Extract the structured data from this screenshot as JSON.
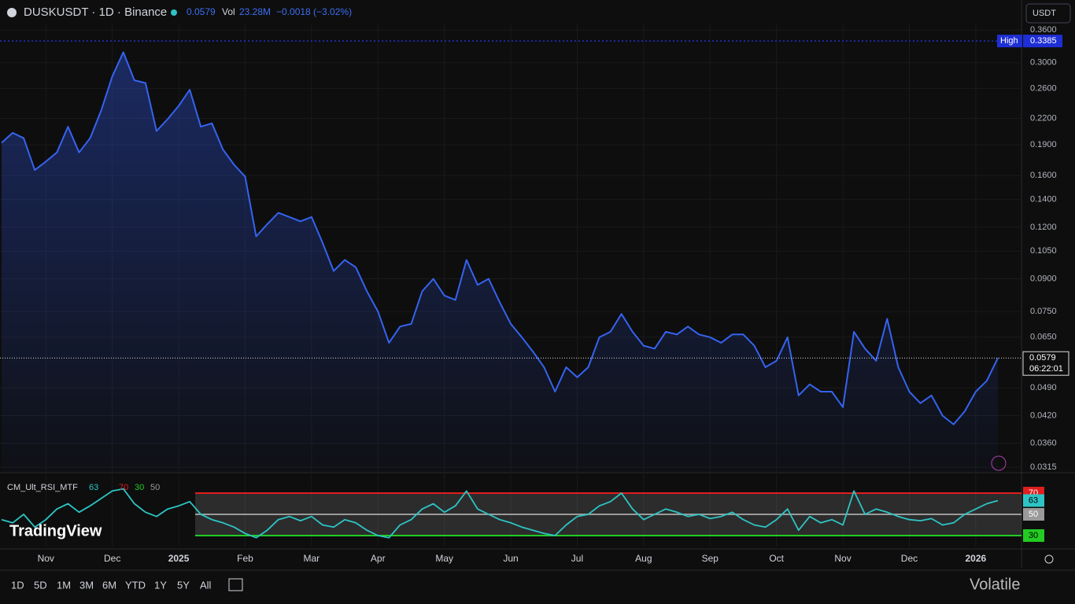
{
  "header": {
    "vol_label": "Vol",
    "volume": "23.28M",
    "change": "−0.0018 (−3.02%)",
    "currency": "USDT"
  },
  "logo": "TradingView",
  "watermark": "Volatile",
  "ranges": [
    "1D",
    "5D",
    "1M",
    "3M",
    "6M",
    "YTD",
    "1Y",
    "5Y",
    "All"
  ],
  "chart_data": [
    {
      "type": "line",
      "log_scale": true,
      "grid": true,
      "categories": [
        null,
        null,
        null,
        null,
        "Nov",
        null,
        null,
        null,
        null,
        null,
        "Dec",
        null,
        null,
        null,
        null,
        null,
        "2025",
        null,
        null,
        null,
        null,
        null,
        "Feb",
        null,
        null,
        null,
        null,
        null,
        "Mar",
        null,
        null,
        null,
        null,
        null,
        "Apr",
        null,
        null,
        null,
        null,
        null,
        "May",
        null,
        null,
        null,
        null,
        null,
        "Jun",
        null,
        null,
        null,
        null,
        null,
        "Jul",
        null,
        null,
        null,
        null,
        null,
        "Aug",
        null,
        null,
        null,
        null,
        null,
        "Sep",
        null,
        null,
        null,
        null,
        null,
        "Oct",
        null,
        null,
        null,
        null,
        null,
        "Nov",
        null,
        null,
        null,
        null,
        null,
        "Dec",
        null,
        null,
        null,
        null,
        null,
        "2026",
        null,
        null
      ],
      "series": [
        {
          "name": "DUSKUSDT · 1D · Binance",
          "color": "#3563f0",
          "values": [
            0.192,
            0.203,
            0.197,
            0.165,
            0.173,
            0.182,
            0.21,
            0.182,
            0.197,
            0.23,
            0.278,
            0.318,
            0.272,
            0.268,
            0.205,
            0.219,
            0.236,
            0.258,
            0.21,
            0.214,
            0.185,
            0.17,
            0.159,
            0.114,
            0.122,
            0.13,
            0.127,
            0.124,
            0.127,
            0.11,
            0.094,
            0.1,
            0.096,
            0.084,
            0.075,
            0.063,
            0.069,
            0.07,
            0.084,
            0.09,
            0.082,
            0.08,
            0.1,
            0.087,
            0.09,
            0.079,
            0.07,
            0.065,
            0.06,
            0.055,
            0.048,
            0.055,
            0.052,
            0.055,
            0.065,
            0.067,
            0.074,
            0.067,
            0.062,
            0.061,
            0.067,
            0.066,
            0.069,
            0.066,
            0.065,
            0.063,
            0.066,
            0.066,
            0.062,
            0.055,
            0.057,
            0.065,
            0.047,
            0.05,
            0.048,
            0.048,
            0.044,
            0.067,
            0.061,
            0.057,
            0.072,
            0.055,
            0.048,
            0.045,
            0.047,
            0.042,
            0.04,
            0.043,
            0.048,
            0.051,
            0.0579
          ]
        }
      ],
      "ylim": [
        0.0307,
        0.373
      ],
      "yticks": [
        {
          "value": 0.36,
          "label": "0.3600"
        },
        {
          "value": 0.3,
          "label": "0.3000"
        },
        {
          "value": 0.26,
          "label": "0.2600"
        },
        {
          "value": 0.22,
          "label": "0.2200"
        },
        {
          "value": 0.19,
          "label": "0.1900"
        },
        {
          "value": 0.16,
          "label": "0.1600"
        },
        {
          "value": 0.14,
          "label": "0.1400"
        },
        {
          "value": 0.12,
          "label": "0.1200"
        },
        {
          "value": 0.105,
          "label": "0.1050"
        },
        {
          "value": 0.09,
          "label": "0.0900"
        },
        {
          "value": 0.075,
          "label": "0.0750"
        },
        {
          "value": 0.065,
          "label": "0.0650"
        },
        {
          "value": 0.049,
          "label": "0.0490"
        },
        {
          "value": 0.042,
          "label": "0.0420"
        },
        {
          "value": 0.036,
          "label": "0.0360"
        },
        {
          "value": 0.0315,
          "label": "0.0315"
        }
      ],
      "annotations": [
        {
          "label": "High",
          "value": 0.3385,
          "color": "#1e2fd6"
        }
      ],
      "countdown": "06:22:01"
    },
    {
      "type": "line",
      "log_scale": false,
      "title": "CM_Ult_RSI_MTF",
      "series": [
        {
          "name": "CM_Ult_RSI_MTF",
          "color": "#2ec4c4",
          "values": [
            45,
            42,
            50,
            38,
            45,
            55,
            60,
            52,
            58,
            65,
            72,
            74,
            60,
            52,
            48,
            55,
            58,
            62,
            50,
            45,
            42,
            38,
            32,
            28,
            35,
            45,
            48,
            44,
            48,
            40,
            38,
            45,
            42,
            35,
            30,
            28,
            40,
            45,
            55,
            60,
            52,
            58,
            72,
            55,
            50,
            45,
            42,
            38,
            35,
            32,
            30,
            40,
            48,
            50,
            58,
            62,
            70,
            55,
            45,
            50,
            55,
            52,
            48,
            50,
            46,
            48,
            52,
            45,
            40,
            38,
            45,
            55,
            35,
            48,
            42,
            45,
            40,
            72,
            50,
            55,
            52,
            48,
            45,
            44,
            46,
            40,
            42,
            50,
            55,
            60,
            63
          ]
        }
      ],
      "ylim": [
        19.6,
        87.8
      ],
      "yticks": [
        70,
        30,
        50
      ],
      "tick_colors": [
        "#e01e1e",
        "#22cc22",
        "#9a9a9a"
      ]
    }
  ]
}
